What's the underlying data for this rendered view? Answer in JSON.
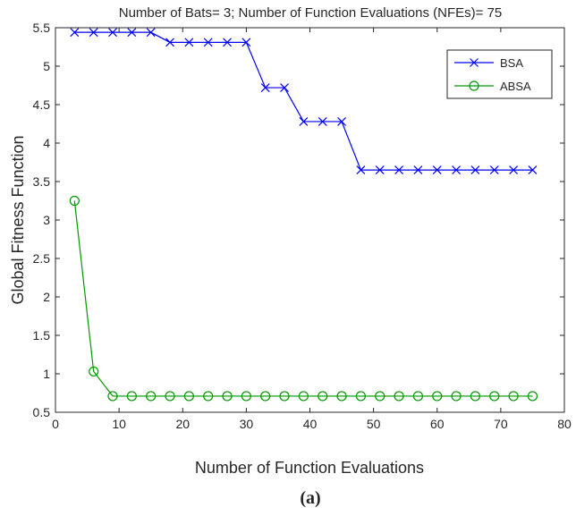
{
  "chart_data": {
    "type": "line",
    "title": "Number of Bats= 3; Number of Function Evaluations (NFEs)= 75",
    "xlabel": "Number of Function Evaluations",
    "ylabel": "Global Fitness Function",
    "xlim": [
      0,
      80
    ],
    "ylim": [
      0.5,
      5.5
    ],
    "xticks": [
      0,
      10,
      20,
      30,
      40,
      50,
      60,
      70,
      80
    ],
    "yticks": [
      0.5,
      1,
      1.5,
      2,
      2.5,
      3,
      3.5,
      4,
      4.5,
      5,
      5.5
    ],
    "grid": false,
    "legend_position": "top-right",
    "panel_label": "(a)",
    "series": [
      {
        "name": "BSA",
        "color": "#0000ff",
        "marker": "x",
        "x": [
          3,
          6,
          9,
          12,
          15,
          18,
          21,
          24,
          27,
          30,
          33,
          36,
          39,
          42,
          45,
          48,
          51,
          54,
          57,
          60,
          63,
          66,
          69,
          72,
          75
        ],
        "values": [
          5.44,
          5.44,
          5.44,
          5.44,
          5.44,
          5.31,
          5.31,
          5.31,
          5.31,
          5.31,
          4.72,
          4.72,
          4.28,
          4.28,
          4.28,
          3.65,
          3.65,
          3.65,
          3.65,
          3.65,
          3.65,
          3.65,
          3.65,
          3.65,
          3.65
        ]
      },
      {
        "name": "ABSA",
        "color": "#009900",
        "marker": "o",
        "x": [
          3,
          6,
          9,
          12,
          15,
          18,
          21,
          24,
          27,
          30,
          33,
          36,
          39,
          42,
          45,
          48,
          51,
          54,
          57,
          60,
          63,
          66,
          69,
          72,
          75
        ],
        "values": [
          3.25,
          1.03,
          0.71,
          0.71,
          0.71,
          0.71,
          0.71,
          0.71,
          0.71,
          0.71,
          0.71,
          0.71,
          0.71,
          0.71,
          0.71,
          0.71,
          0.71,
          0.71,
          0.71,
          0.71,
          0.71,
          0.71,
          0.71,
          0.71,
          0.71
        ]
      }
    ]
  }
}
